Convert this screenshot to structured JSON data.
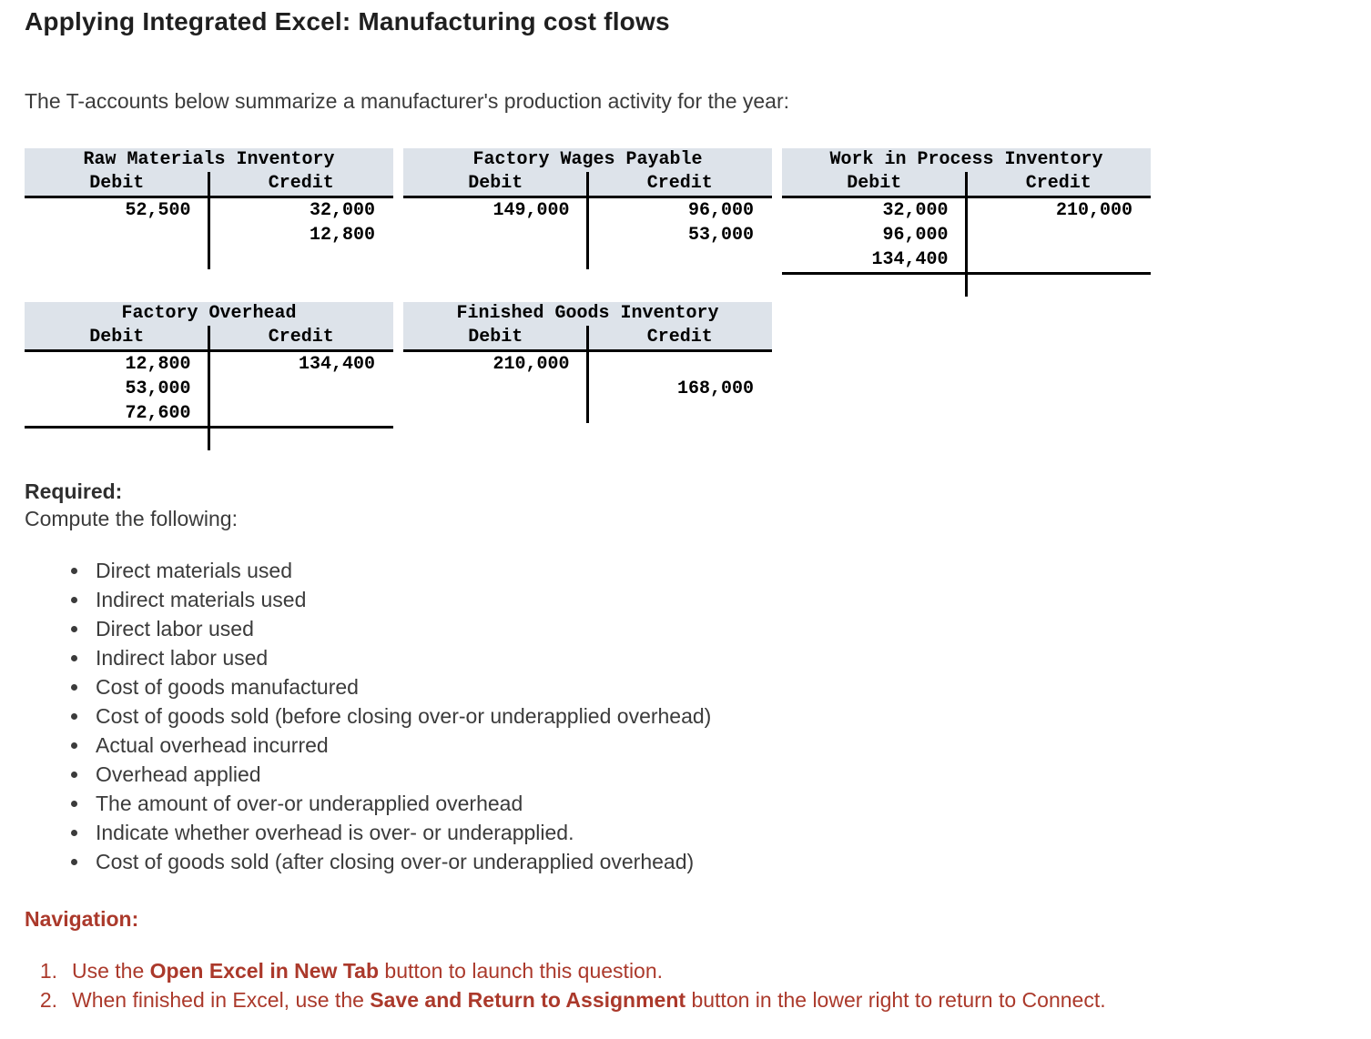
{
  "page": {
    "title": "Applying Integrated Excel: Manufacturing cost flows",
    "intro": "The T-accounts below summarize a manufacturer's production activity for the year:"
  },
  "t_accounts": [
    {
      "name": "Raw Materials Inventory",
      "debit_label": "Debit",
      "credit_label": "Credit",
      "rows": [
        [
          "52,500",
          "32,000"
        ],
        [
          "",
          "12,800"
        ]
      ],
      "total_rule": false
    },
    {
      "name": "Factory Wages Payable",
      "debit_label": "Debit",
      "credit_label": "Credit",
      "rows": [
        [
          "149,000",
          "96,000"
        ],
        [
          "",
          "53,000"
        ]
      ],
      "total_rule": false
    },
    {
      "name": "Work in Process Inventory",
      "debit_label": "Debit",
      "credit_label": "Credit",
      "rows": [
        [
          "32,000",
          "210,000"
        ],
        [
          "96,000",
          ""
        ],
        [
          "134,400",
          ""
        ]
      ],
      "total_rule": true
    },
    {
      "name": "Factory Overhead",
      "debit_label": "Debit",
      "credit_label": "Credit",
      "rows": [
        [
          "12,800",
          "134,400"
        ],
        [
          "53,000",
          ""
        ],
        [
          "72,600",
          ""
        ]
      ],
      "total_rule": true
    },
    {
      "name": "Finished Goods Inventory",
      "debit_label": "Debit",
      "credit_label": "Credit",
      "rows": [
        [
          "210,000",
          ""
        ],
        [
          "",
          "168,000"
        ]
      ],
      "total_rule": false
    }
  ],
  "required": {
    "heading": "Required:",
    "subheading": "Compute the following:",
    "items": [
      "Direct materials used",
      "Indirect materials used",
      "Direct labor used",
      "Indirect labor used",
      "Cost of goods manufactured",
      "Cost of goods sold (before closing over-or underapplied overhead)",
      "Actual overhead incurred",
      "Overhead applied",
      "The amount of over-or underapplied overhead",
      "Indicate whether overhead is over- or underapplied.",
      "Cost of goods sold (after closing over-or underapplied overhead)"
    ]
  },
  "navigation": {
    "heading": "Navigation:",
    "steps": [
      {
        "number": "1.",
        "pre": "Use the ",
        "bold": "Open Excel in New Tab",
        "post": " button to launch this question."
      },
      {
        "number": "2.",
        "pre": "When finished in Excel, use the ",
        "bold": "Save and Return to Assignment",
        "post": " button in the lower right to return to Connect."
      }
    ]
  },
  "colors": {
    "t_account_header_bg": "#dde3ea",
    "rule": "#000000",
    "nav_red": "#ab392b",
    "body_text": "#3b3b3b"
  }
}
